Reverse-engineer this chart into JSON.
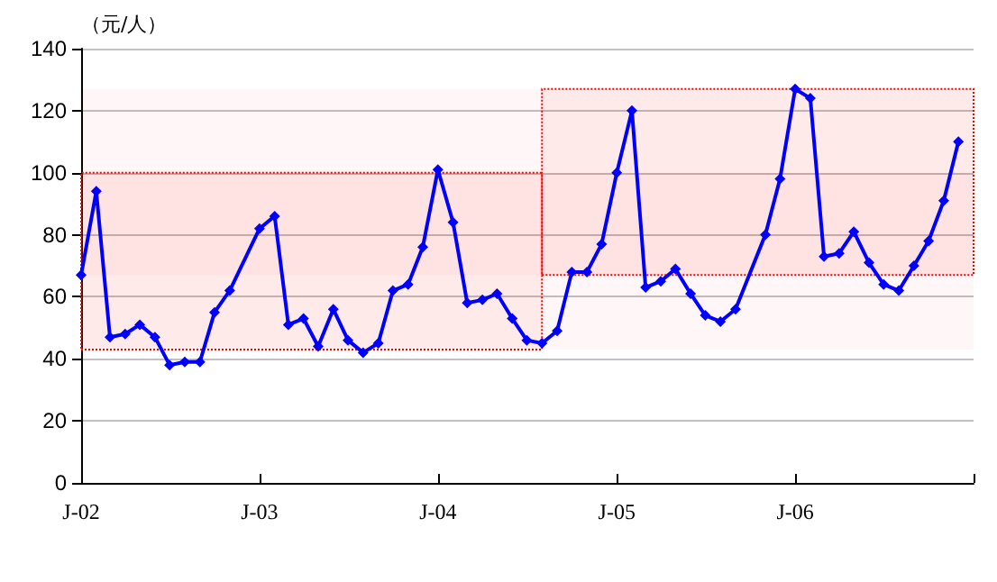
{
  "chart_data": {
    "type": "line",
    "ylabel": "（元/人）",
    "x": [
      "2002-01",
      "2002-02",
      "2002-03",
      "2002-04",
      "2002-05",
      "2002-06",
      "2002-07",
      "2002-08",
      "2002-09",
      "2002-10",
      "2002-11",
      "2003-01",
      "2003-02",
      "2003-03",
      "2003-04",
      "2003-05",
      "2003-06",
      "2003-07",
      "2003-08",
      "2003-09",
      "2003-10",
      "2003-11",
      "2003-12",
      "2004-01",
      "2004-02",
      "2004-03",
      "2004-04",
      "2004-05",
      "2004-06",
      "2004-07",
      "2004-08",
      "2004-09",
      "2004-10",
      "2004-11",
      "2004-12",
      "2005-01",
      "2005-02",
      "2005-03",
      "2005-04",
      "2005-05",
      "2005-06",
      "2005-07",
      "2005-08",
      "2005-09",
      "2005-11",
      "2005-12",
      "2006-01",
      "2006-02",
      "2006-03",
      "2006-04",
      "2006-05",
      "2006-06",
      "2006-07",
      "2006-08",
      "2006-09",
      "2006-10",
      "2006-11",
      "2006-12"
    ],
    "series": [
      {
        "color": "#0000ff",
        "values": [
          67,
          94,
          47,
          48,
          51,
          47,
          38,
          39,
          39,
          55,
          62,
          82,
          86,
          51,
          53,
          44,
          56,
          46,
          42,
          45,
          62,
          64,
          76,
          101,
          84,
          58,
          59,
          61,
          53,
          46,
          45,
          49,
          68,
          68,
          77,
          100,
          120,
          63,
          65,
          69,
          61,
          54,
          52,
          56,
          80,
          98,
          127,
          124,
          73,
          74,
          81,
          71,
          64,
          62,
          70,
          78,
          91,
          110
        ]
      }
    ],
    "xlim": [
      "2002-01",
      "2007-01"
    ],
    "xticks": [
      {
        "value": "2002-01",
        "label": "J-02"
      },
      {
        "value": "2003-01",
        "label": "J-03"
      },
      {
        "value": "2004-01",
        "label": "J-04"
      },
      {
        "value": "2005-01",
        "label": "J-05"
      },
      {
        "value": "2006-01",
        "label": "J-06"
      },
      {
        "value": "2007-01",
        "label": null
      }
    ],
    "ylim": [
      0,
      140
    ],
    "yticks": [
      0,
      20,
      40,
      60,
      80,
      100,
      120,
      140
    ],
    "grid": "y",
    "marker": "diamond",
    "line_style": "solid",
    "bands": [
      {
        "axis": "x",
        "from": "2002-01",
        "to": "2004-08",
        "color": "#ff0000"
      },
      {
        "axis": "y",
        "from": 43,
        "to": 100,
        "color": "#ff0000"
      },
      {
        "axis": "x",
        "from": "2004-08",
        "to": "2007-01",
        "color": "#ff0000"
      },
      {
        "axis": "y",
        "from": 67,
        "to": 127,
        "color": "#ff0000"
      }
    ]
  }
}
